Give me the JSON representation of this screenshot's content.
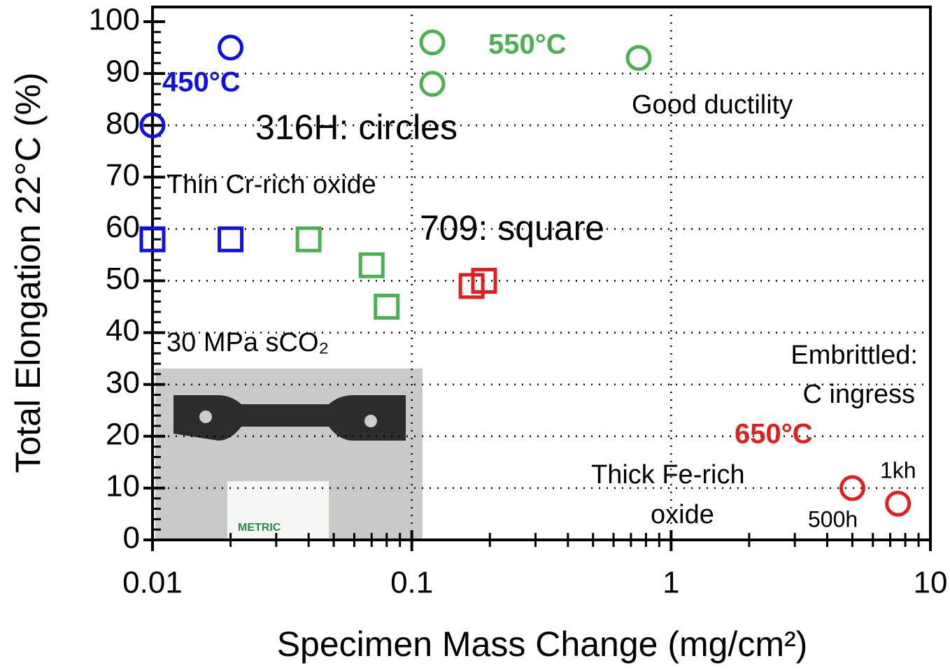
{
  "chart_data": {
    "type": "scatter",
    "xlabel": "Specimen Mass Change (mg/cm²)",
    "ylabel": "Total Elongation 22°C (%)",
    "xscale": "log",
    "xlim": [
      0.01,
      10
    ],
    "ylim": [
      0,
      100
    ],
    "xticks": [
      0.01,
      0.1,
      1,
      10
    ],
    "yticks": [
      0,
      10,
      20,
      30,
      40,
      50,
      60,
      70,
      80,
      90,
      100
    ],
    "xminorticks": [
      0.02,
      0.03,
      0.04,
      0.05,
      0.06,
      0.07,
      0.08,
      0.09,
      0.2,
      0.3,
      0.4,
      0.5,
      0.6,
      0.7,
      0.8,
      0.9,
      2,
      3,
      4,
      5,
      6,
      7,
      8,
      9
    ],
    "yminorticks": [
      2,
      4,
      6,
      8,
      12,
      14,
      16,
      18,
      22,
      24,
      26,
      28,
      32,
      34,
      36,
      38,
      42,
      44,
      46,
      48,
      52,
      54,
      56,
      58,
      62,
      64,
      66,
      68,
      72,
      74,
      76,
      78,
      82,
      84,
      86,
      88,
      92,
      94,
      96,
      98
    ],
    "grid": true,
    "series": [
      {
        "marker": "circle",
        "color": "#1010e0",
        "x": [
          0.01,
          0.02
        ],
        "values": [
          80,
          95
        ]
      },
      {
        "marker": "circle",
        "color": "#4caf50",
        "x": [
          0.12,
          0.12,
          0.75
        ],
        "values": [
          96,
          88,
          93
        ]
      },
      {
        "marker": "circle",
        "color": "#e02020",
        "x": [
          5,
          7.5
        ],
        "values": [
          10,
          7
        ]
      },
      {
        "marker": "square",
        "color": "#1010e0",
        "x": [
          0.01,
          0.02
        ],
        "values": [
          58,
          58
        ]
      },
      {
        "marker": "square",
        "color": "#4caf50",
        "x": [
          0.04,
          0.07,
          0.08
        ],
        "values": [
          58,
          53,
          45
        ]
      },
      {
        "marker": "square",
        "color": "#e02020",
        "x": [
          0.17,
          0.19
        ],
        "values": [
          49,
          50
        ]
      }
    ],
    "annotations": {
      "t450": "450°C",
      "t550": "550°C",
      "t650": "650°C",
      "circles": "316H: circles",
      "square": "709: square",
      "thin": "Thin Cr-rich oxide",
      "pressure": "30 MPa sCO₂",
      "good": "Good ductility",
      "embrittled": "Embrittled:",
      "ingress": "C ingress",
      "thick": "Thick Fe-rich",
      "oxide": "oxide",
      "kh": "1kh",
      "h500": "500h"
    }
  }
}
